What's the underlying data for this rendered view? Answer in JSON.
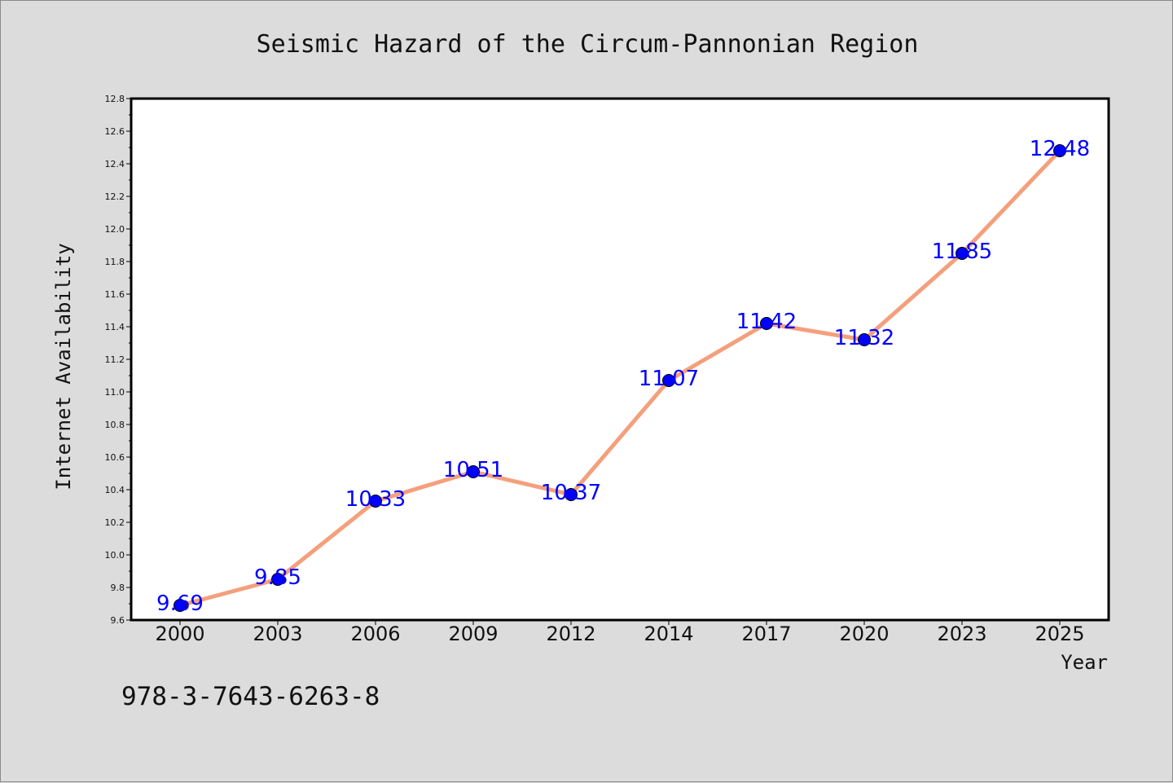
{
  "chart_data": {
    "type": "line",
    "title": "Seismic Hazard of the Circum-Pannonian Region",
    "xlabel": "Year",
    "ylabel": "Internet Availability",
    "categories": [
      "2000",
      "2003",
      "2006",
      "2009",
      "2012",
      "2014",
      "2017",
      "2020",
      "2023",
      "2025"
    ],
    "values": [
      9.69,
      9.85,
      10.33,
      10.51,
      10.37,
      11.07,
      11.42,
      11.32,
      11.85,
      12.48
    ],
    "data_labels": [
      "9.69",
      "9.85",
      "10.33",
      "10.51",
      "10.37",
      "11.07",
      "11.42",
      "11.32",
      "11.85",
      "12.48"
    ],
    "ylim": [
      9.6,
      12.8
    ],
    "yticks": [
      "9.6",
      "9.8",
      "10.0",
      "10.2",
      "10.4",
      "10.6",
      "10.8",
      "11.0",
      "11.2",
      "11.4",
      "11.6",
      "11.8",
      "12.0",
      "12.2",
      "12.4",
      "12.6",
      "12.8"
    ],
    "grid": false,
    "line_color": "#f4a07c",
    "marker_color": "#0000ff",
    "label_color": "#0000ff"
  },
  "footnote": "978-3-7643-6263-8"
}
